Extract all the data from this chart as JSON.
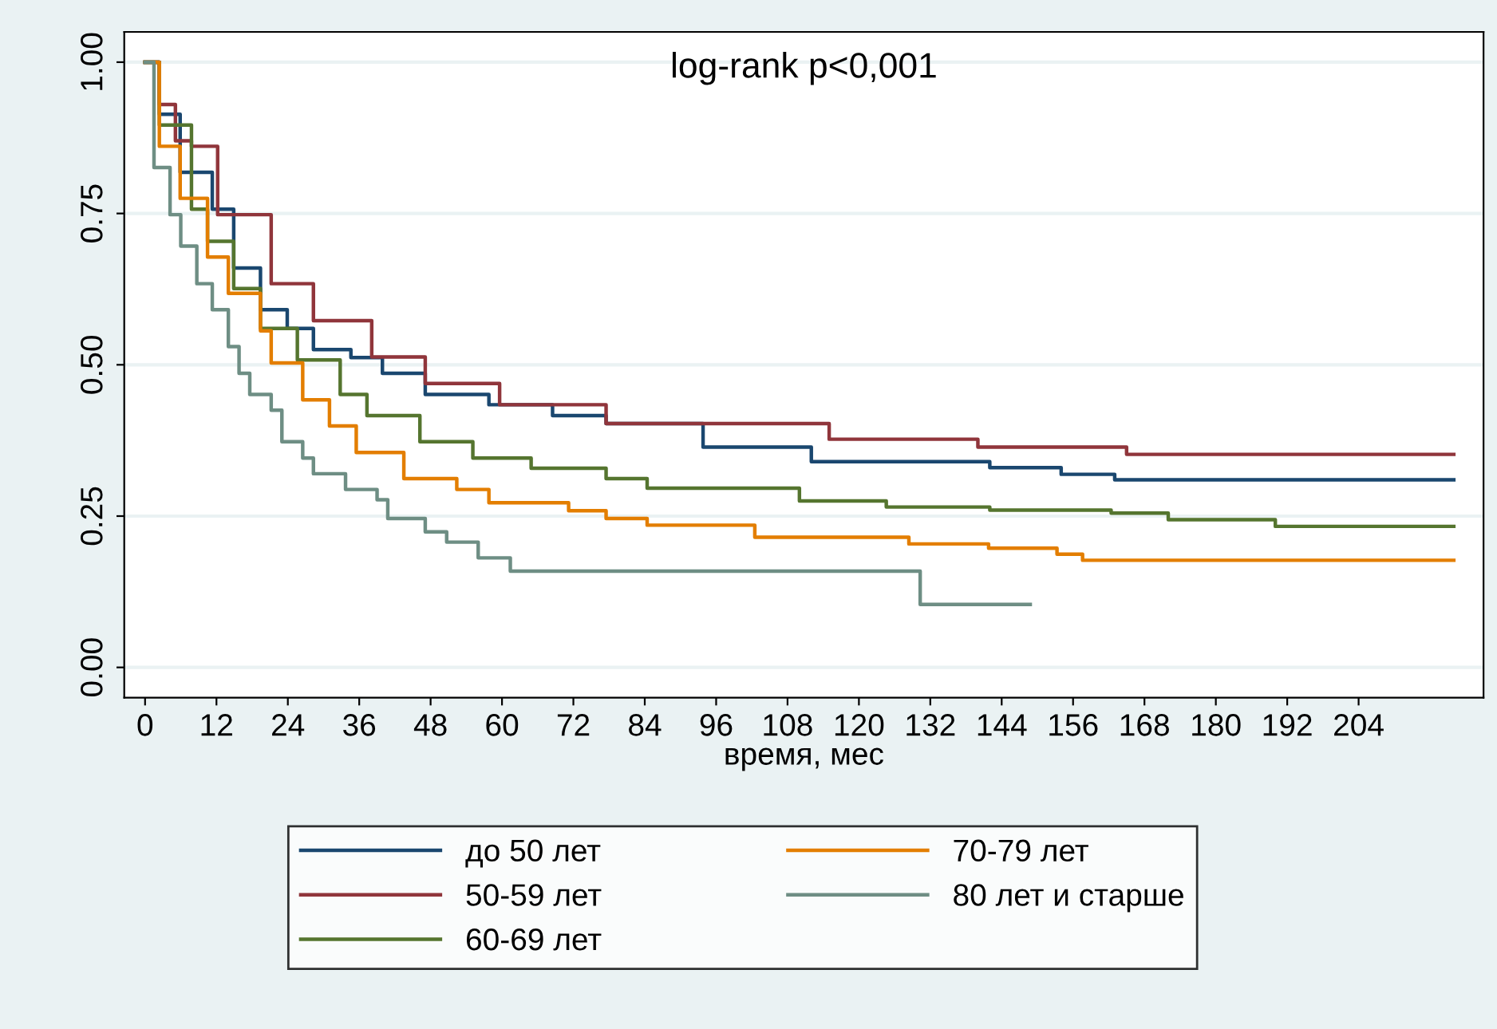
{
  "chart_data": {
    "type": "step",
    "xlabel": "время, мес",
    "annotations": [
      "log-rank p<0,001"
    ],
    "xlim": [
      -3.5,
      225
    ],
    "ylim": [
      -0.05,
      1.05
    ],
    "xticks": [
      0,
      12,
      24,
      36,
      48,
      60,
      72,
      84,
      96,
      108,
      120,
      132,
      144,
      156,
      168,
      180,
      192,
      204
    ],
    "yticks": [
      {
        "value": 0,
        "label": "0.00"
      },
      {
        "value": 0.25,
        "label": "0.25"
      },
      {
        "value": 0.5,
        "label": "0.50"
      },
      {
        "value": 0.75,
        "label": "0.75"
      },
      {
        "value": 1,
        "label": "1.00"
      }
    ],
    "grid": "y",
    "legend": "bottom",
    "line_style": "solid",
    "marker": "none",
    "series": [
      {
        "name": "до 50 лет",
        "color": "#1a476f",
        "x": [
          0,
          2.4,
          5.9,
          11.3,
          14.9,
          19.4,
          23.9,
          28.3,
          34.6,
          39.9,
          47.1,
          57.8,
          68.5,
          77.5,
          93.8,
          112,
          142,
          154,
          163,
          220
        ],
        "values": [
          1,
          0.914,
          0.818,
          0.757,
          0.66,
          0.591,
          0.56,
          0.525,
          0.512,
          0.486,
          0.451,
          0.434,
          0.416,
          0.403,
          0.364,
          0.34,
          0.33,
          0.319,
          0.31,
          0.31
        ]
      },
      {
        "name": "50-59 лет",
        "color": "#90353b",
        "x": [
          0,
          2.4,
          5.1,
          7.8,
          12.2,
          21.2,
          28.3,
          38.1,
          47.1,
          59.6,
          77.5,
          115,
          140,
          165,
          220
        ],
        "values": [
          1,
          0.93,
          0.87,
          0.861,
          0.748,
          0.634,
          0.573,
          0.513,
          0.469,
          0.434,
          0.403,
          0.377,
          0.364,
          0.352,
          0.352
        ]
      },
      {
        "name": "60-69 лет",
        "color": "#55752f",
        "x": [
          0,
          2.4,
          7.8,
          10.5,
          14.9,
          19.4,
          25.6,
          32.8,
          37.3,
          46.2,
          55.1,
          64.9,
          77.5,
          84.4,
          110,
          124.6,
          142,
          162.4,
          172,
          190,
          220
        ],
        "values": [
          1,
          0.896,
          0.757,
          0.704,
          0.626,
          0.56,
          0.508,
          0.451,
          0.416,
          0.373,
          0.346,
          0.329,
          0.312,
          0.296,
          0.275,
          0.265,
          0.26,
          0.255,
          0.244,
          0.233,
          0.233
        ]
      },
      {
        "name": "70-79 лет",
        "color": "#e37e00",
        "x": [
          0,
          2.4,
          5.9,
          10.5,
          14,
          19.4,
          21.2,
          26.5,
          31,
          35.5,
          43.5,
          52.4,
          57.8,
          71.2,
          77.5,
          84.4,
          102.5,
          128.4,
          141.8,
          153.3,
          157.6,
          220
        ],
        "values": [
          1,
          0.861,
          0.775,
          0.678,
          0.618,
          0.556,
          0.503,
          0.442,
          0.399,
          0.355,
          0.312,
          0.294,
          0.272,
          0.259,
          0.246,
          0.235,
          0.215,
          0.204,
          0.197,
          0.187,
          0.177,
          0.177
        ]
      },
      {
        "name": "80 лет и старше",
        "color": "#6e8e84",
        "x": [
          0,
          1.5,
          4.2,
          6,
          8.7,
          11.3,
          14,
          15.8,
          17.6,
          21.2,
          23,
          26.5,
          28.3,
          33.7,
          39,
          40.8,
          47.1,
          50.7,
          56,
          61.4,
          130.3,
          148.8
        ],
        "values": [
          1,
          0.826,
          0.748,
          0.696,
          0.634,
          0.591,
          0.53,
          0.486,
          0.451,
          0.425,
          0.373,
          0.346,
          0.32,
          0.294,
          0.277,
          0.246,
          0.224,
          0.207,
          0.181,
          0.159,
          0.104,
          0.104
        ]
      }
    ]
  }
}
